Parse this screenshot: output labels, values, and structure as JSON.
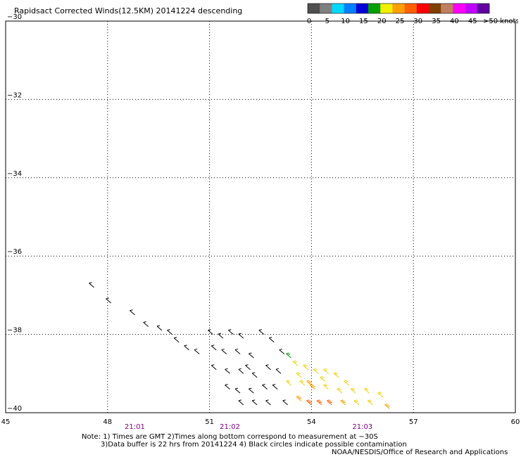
{
  "title": "Rapidsact Corrected Winds(12.5KM) 20141224 descending",
  "legend": {
    "colors": [
      "#505050",
      "#808080",
      "#00d8ff",
      "#0080ff",
      "#0000d8",
      "#00a000",
      "#f0f000",
      "#ffa000",
      "#ff6000",
      "#ff0000",
      "#804000",
      "#c08060",
      "#ff00ff",
      "#c000ff",
      "#6000a0"
    ],
    "labels": [
      "0",
      "5",
      "10",
      "15",
      "20",
      "25",
      "30",
      "35",
      "40",
      "45",
      ">50 knots"
    ]
  },
  "notes": {
    "line1": "Note: 1) Times are GMT 2)Times along bottom correspond to measurement at −30S",
    "line2": "3)Data buffer is 22 hrs from 20141224 4) Black circles indicate possible contamination",
    "line3": "NOAA/NESDIS/Office of Research and Applications"
  },
  "chart_data": {
    "type": "scatter",
    "title": "Rapidsact Corrected Winds(12.5KM) 20141224 descending",
    "xlabel": "",
    "ylabel": "",
    "xlim": [
      45,
      60
    ],
    "ylim": [
      -40,
      -30
    ],
    "xticks": [
      45,
      48,
      51,
      54,
      57,
      60
    ],
    "yticks": [
      -30,
      -32,
      -34,
      -36,
      -38,
      -40
    ],
    "grid": true,
    "time_labels": [
      {
        "x": 48.8,
        "label": "21:01"
      },
      {
        "x": 51.6,
        "label": "21:02"
      },
      {
        "x": 55.5,
        "label": "21:03"
      }
    ],
    "wind_barbs": [
      {
        "lon": 47.6,
        "lat": -36.8,
        "speed": 8
      },
      {
        "lon": 48.1,
        "lat": -37.2,
        "speed": 8
      },
      {
        "lon": 48.8,
        "lat": -37.5,
        "speed": 8
      },
      {
        "lon": 49.2,
        "lat": -37.8,
        "speed": 9
      },
      {
        "lon": 49.6,
        "lat": -37.9,
        "speed": 9
      },
      {
        "lon": 49.9,
        "lat": -38.0,
        "speed": 9
      },
      {
        "lon": 50.1,
        "lat": -38.2,
        "speed": 9
      },
      {
        "lon": 50.4,
        "lat": -38.4,
        "speed": 9
      },
      {
        "lon": 50.7,
        "lat": -38.5,
        "speed": 9
      },
      {
        "lon": 51.1,
        "lat": -38.0,
        "speed": 10
      },
      {
        "lon": 51.4,
        "lat": -38.1,
        "speed": 10
      },
      {
        "lon": 51.7,
        "lat": -38.0,
        "speed": 10
      },
      {
        "lon": 52.0,
        "lat": -38.1,
        "speed": 10
      },
      {
        "lon": 51.2,
        "lat": -38.4,
        "speed": 10
      },
      {
        "lon": 51.5,
        "lat": -38.5,
        "speed": 10
      },
      {
        "lon": 51.9,
        "lat": -38.5,
        "speed": 10
      },
      {
        "lon": 52.3,
        "lat": -38.6,
        "speed": 10
      },
      {
        "lon": 52.6,
        "lat": -38.0,
        "speed": 10
      },
      {
        "lon": 52.9,
        "lat": -38.2,
        "speed": 10
      },
      {
        "lon": 53.2,
        "lat": -38.5,
        "speed": 12
      },
      {
        "lon": 53.4,
        "lat": -38.6,
        "speed": 17
      },
      {
        "lon": 51.2,
        "lat": -38.9,
        "speed": 10
      },
      {
        "lon": 51.6,
        "lat": -39.0,
        "speed": 10
      },
      {
        "lon": 52.0,
        "lat": -39.0,
        "speed": 10
      },
      {
        "lon": 52.4,
        "lat": -39.1,
        "speed": 10
      },
      {
        "lon": 52.8,
        "lat": -38.9,
        "speed": 10
      },
      {
        "lon": 53.1,
        "lat": -39.0,
        "speed": 10
      },
      {
        "lon": 53.6,
        "lat": -38.8,
        "speed": 22
      },
      {
        "lon": 53.9,
        "lat": -38.9,
        "speed": 22
      },
      {
        "lon": 54.2,
        "lat": -39.0,
        "speed": 22
      },
      {
        "lon": 54.5,
        "lat": -39.0,
        "speed": 22
      },
      {
        "lon": 54.8,
        "lat": -39.1,
        "speed": 22
      },
      {
        "lon": 55.1,
        "lat": -39.3,
        "speed": 22
      },
      {
        "lon": 51.6,
        "lat": -39.4,
        "speed": 10
      },
      {
        "lon": 51.9,
        "lat": -39.5,
        "speed": 10
      },
      {
        "lon": 52.3,
        "lat": -39.5,
        "speed": 10
      },
      {
        "lon": 52.7,
        "lat": -39.4,
        "speed": 10
      },
      {
        "lon": 53.0,
        "lat": -39.4,
        "speed": 10
      },
      {
        "lon": 53.4,
        "lat": -39.3,
        "speed": 22
      },
      {
        "lon": 53.8,
        "lat": -39.3,
        "speed": 22
      },
      {
        "lon": 54.1,
        "lat": -39.4,
        "speed": 27
      },
      {
        "lon": 54.5,
        "lat": -39.4,
        "speed": 22
      },
      {
        "lon": 54.9,
        "lat": -39.5,
        "speed": 22
      },
      {
        "lon": 55.3,
        "lat": -39.5,
        "speed": 22
      },
      {
        "lon": 55.7,
        "lat": -39.5,
        "speed": 22
      },
      {
        "lon": 56.1,
        "lat": -39.6,
        "speed": 22
      },
      {
        "lon": 52.0,
        "lat": -39.8,
        "speed": 10
      },
      {
        "lon": 52.4,
        "lat": -39.8,
        "speed": 10
      },
      {
        "lon": 52.8,
        "lat": -39.8,
        "speed": 10
      },
      {
        "lon": 53.3,
        "lat": -39.8,
        "speed": 10
      },
      {
        "lon": 53.7,
        "lat": -39.7,
        "speed": 27
      },
      {
        "lon": 54.0,
        "lat": -39.8,
        "speed": 32
      },
      {
        "lon": 54.3,
        "lat": -39.8,
        "speed": 32
      },
      {
        "lon": 54.6,
        "lat": -39.8,
        "speed": 32
      },
      {
        "lon": 55.0,
        "lat": -39.8,
        "speed": 27
      },
      {
        "lon": 55.4,
        "lat": -39.8,
        "speed": 22
      },
      {
        "lon": 55.8,
        "lat": -39.8,
        "speed": 22
      },
      {
        "lon": 56.3,
        "lat": -39.9,
        "speed": 27
      },
      {
        "lon": 54.0,
        "lat": -39.3,
        "speed": 27
      },
      {
        "lon": 54.4,
        "lat": -39.2,
        "speed": 22
      },
      {
        "lon": 53.7,
        "lat": -39.1,
        "speed": 22
      },
      {
        "lon": 52.2,
        "lat": -38.9,
        "speed": 10
      }
    ]
  }
}
